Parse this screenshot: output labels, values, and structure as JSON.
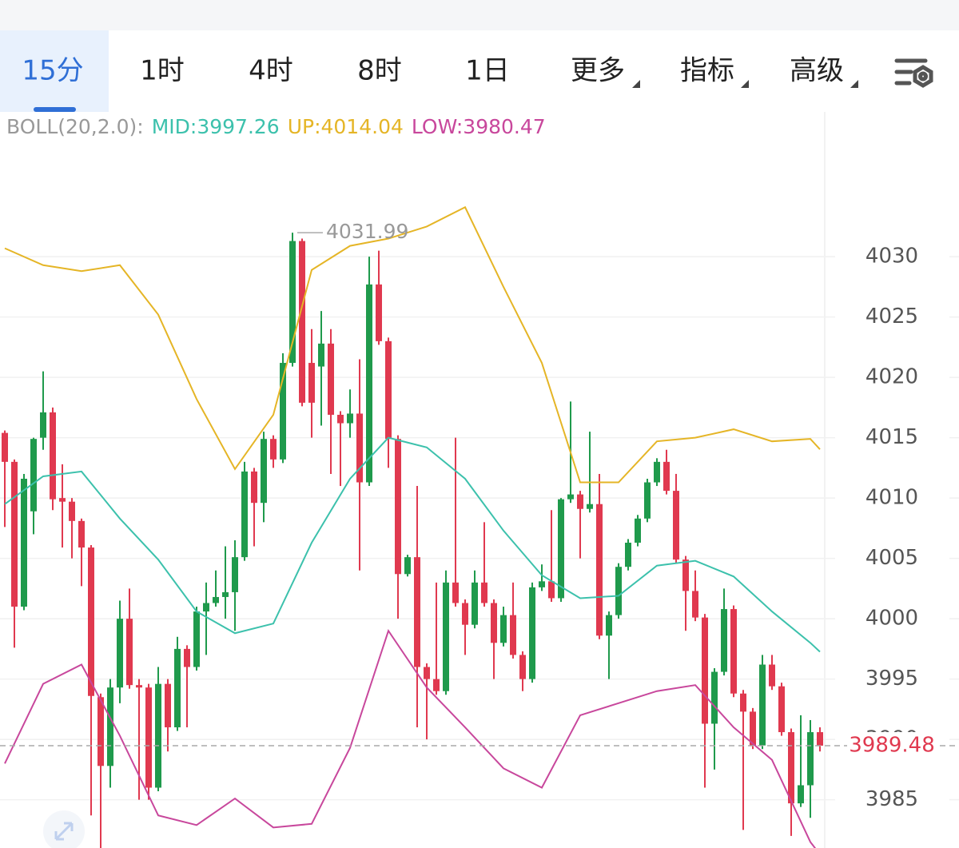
{
  "tabs": [
    "15分",
    "1时",
    "4时",
    "8时",
    "1日",
    "更多",
    "指标",
    "高级"
  ],
  "active_tab": 0,
  "chart_data": {
    "type": "candlestick",
    "up_color": "#1f9a4c",
    "down_color": "#e0394f",
    "open": [
      4015.4,
      4013,
      4001,
      4008.9,
      4015,
      4017.1,
      4010,
      4009.7,
      4008.1,
      4005.9,
      3993.5,
      3987.8,
      3994.3,
      4000,
      3994.5,
      3994.3,
      3986,
      3994.6,
      3991,
      3997.5,
      3996,
      4000.6,
      4001.3,
      4001.8,
      4002.2,
      4005.1,
      4012.2,
      4009.6,
      4014.9,
      4013.2,
      4021.2,
      4031.3,
      4021.2,
      4020.9,
      4022.8,
      4016.9,
      4016.2,
      4017,
      4011.3,
      4027.7,
      4023,
      4014.9,
      4003.7,
      4005.1,
      3996,
      3995,
      3994,
      4003,
      4001.3,
      3999.5,
      4003,
      4001.3,
      3998,
      4000.3,
      3997,
      3995,
      4002.6,
      4003.1,
      4001.7,
      4009.9,
      4010.3,
      4009.1,
      4009.5,
      3998.6,
      4000.3,
      4004.3,
      4006.3,
      4008.3,
      4011.3,
      4013,
      4010.6,
      4004.9,
      4002.3,
      4000.1,
      3991.3,
      3995.6,
      4000.8,
      3993.8,
      3992.3,
      3989.5,
      3996.2,
      3994.4,
      3990.6,
      3984.7,
      3986.2,
      3990.6
    ],
    "high": [
      4015.6,
      4013.2,
      4012,
      4015,
      4020.5,
      4017.5,
      4012.8,
      4010,
      4008.3,
      4006.1,
      3993.8,
      3995,
      4001.5,
      4002.5,
      3995,
      3994.6,
      3996,
      3995,
      3998.5,
      3997.8,
      4001,
      4003,
      4004,
      4006,
      4006.5,
      4013,
      4012.5,
      4015.5,
      4015.2,
      4022,
      4031.99,
      4031.5,
      4024,
      4025.5,
      4024,
      4017.2,
      4019,
      4021.5,
      4030,
      4030.5,
      4023.3,
      4015.2,
      4005.3,
      4011,
      3996.3,
      4003,
      4004,
      4015,
      4001.6,
      4004,
      4008,
      4001.6,
      4001,
      4003,
      3997.3,
      4003,
      4004.5,
      4009,
      4010,
      4018,
      4010.6,
      4015.5,
      4012,
      4000.6,
      4004.6,
      4006.6,
      4008.6,
      4011.6,
      4013.3,
      4014,
      4012,
      4005.2,
      4004,
      4000.4,
      3995.9,
      4002.5,
      4001.1,
      3994.1,
      3992.6,
      3997,
      3997,
      3994.7,
      3990.9,
      3992,
      3991.6,
      3991
    ],
    "low": [
      4007.6,
      3997.6,
      4000.7,
      4007,
      4014,
      4009,
      4005.9,
      4005,
      4002.7,
      3983.7,
      3980.9,
      3986,
      3993,
      3994.2,
      3985,
      3985,
      3985.7,
      3989,
      3990.7,
      3991,
      3995.7,
      3997,
      4001,
      4000,
      3999,
      4004.8,
      4006,
      4008,
      4012.5,
      4012.9,
      4020.9,
      4017.6,
      4015,
      4016,
      4012,
      4011,
      4015,
      4004,
      4011,
      4022.7,
      4012.5,
      4000,
      4003.5,
      3991,
      3990,
      3993.7,
      3993.7,
      4001,
      3997,
      3999.2,
      4001,
      3995,
      3997.7,
      3996.7,
      3994,
      3994.7,
      4002.3,
      4001.4,
      4001.4,
      4009.6,
      4005,
      4008.8,
      3998.3,
      3995,
      4000,
      4004,
      4006,
      4008,
      4011,
      4010.3,
      4004.6,
      3999,
      3999.8,
      3986,
      3987.5,
      3995.3,
      3993.5,
      3982.5,
      3989.2,
      3989.2,
      3994.1,
      3990.3,
      3982,
      3984.4,
      3983.5,
      3989
    ],
    "close": [
      4013,
      4001,
      4011.6,
      4014.9,
      4017.1,
      4009.9,
      4009.7,
      4008.1,
      4005.9,
      3993.6,
      3987.8,
      3994.3,
      4000,
      3994.5,
      3994.3,
      3986,
      3994.6,
      3991,
      3997.5,
      3996,
      4000.6,
      4001.3,
      4001.8,
      4002.2,
      4005.1,
      4012.2,
      4009.6,
      4014.9,
      4013.2,
      4021.2,
      4031.3,
      4017.9,
      4017.9,
      4022.8,
      4016.9,
      4016.2,
      4017,
      4011.3,
      4027.7,
      4023,
      4014.9,
      4003.7,
      4005.1,
      3996,
      3995,
      3994,
      4003,
      4001.3,
      3999.5,
      4003,
      4001.3,
      3998,
      4000.3,
      3997,
      3995,
      4002.6,
      4003.1,
      4001.7,
      4009.9,
      4010.3,
      4009.1,
      4009.5,
      3998.6,
      4000.3,
      4004.3,
      4006.3,
      4008.3,
      4011.3,
      4013,
      4010.6,
      4004.9,
      4002.3,
      4000.1,
      3991.3,
      3995.6,
      4000.8,
      3993.8,
      3992.3,
      3989.5,
      3996.2,
      3994.4,
      3990.6,
      3984.7,
      3986.2,
      3990.6,
      3989.48
    ],
    "indicator": {
      "label": "BOLL(20,2.0):",
      "x": [
        0,
        4,
        8,
        12,
        16,
        20,
        24,
        28,
        32,
        36,
        40,
        44,
        48,
        52,
        56,
        60,
        64,
        68,
        72,
        76,
        80,
        84,
        85
      ],
      "series": [
        {
          "name": "MID:3997.26",
          "color": "#3cc1ac",
          "values": [
            4009.5,
            4011.8,
            4012.2,
            4008.3,
            4004.9,
            4000.6,
            3998.8,
            3999.6,
            4006.3,
            4011.6,
            4015.0,
            4014.2,
            4011.6,
            4007.3,
            4003.6,
            4001.7,
            4001.9,
            4004.4,
            4004.8,
            4003.5,
            4000.6,
            3998.0,
            3997.26
          ]
        },
        {
          "name": "UP:4014.04",
          "color": "#e5b526",
          "values": [
            4030.7,
            4029.3,
            4028.8,
            4029.3,
            4025.2,
            4018.2,
            4012.4,
            4016.9,
            4028.9,
            4030.9,
            4031.5,
            4032.5,
            4034.1,
            4027.5,
            4021.2,
            4011.3,
            4011.3,
            4014.7,
            4015.0,
            4015.7,
            4014.7,
            4014.9,
            4014.04
          ]
        },
        {
          "name": "LOW:3980.47",
          "color": "#c8479c",
          "values": [
            3988.0,
            3994.6,
            3996.2,
            3990.3,
            3983.7,
            3982.9,
            3985.1,
            3982.7,
            3983.0,
            3989.3,
            3999.0,
            3994.3,
            3991.0,
            3987.6,
            3986.0,
            3992.0,
            3993.0,
            3994.0,
            3994.5,
            3991.0,
            3988.3,
            3981.5,
            3980.47
          ]
        }
      ]
    },
    "max_price": 4031.99,
    "last_price": 3989.48,
    "ylim": [
      3981,
      4042
    ],
    "yticks": [
      3985,
      3990,
      3995,
      4000,
      4005,
      4010,
      4015,
      4020,
      4025,
      4030
    ],
    "grid": true
  }
}
